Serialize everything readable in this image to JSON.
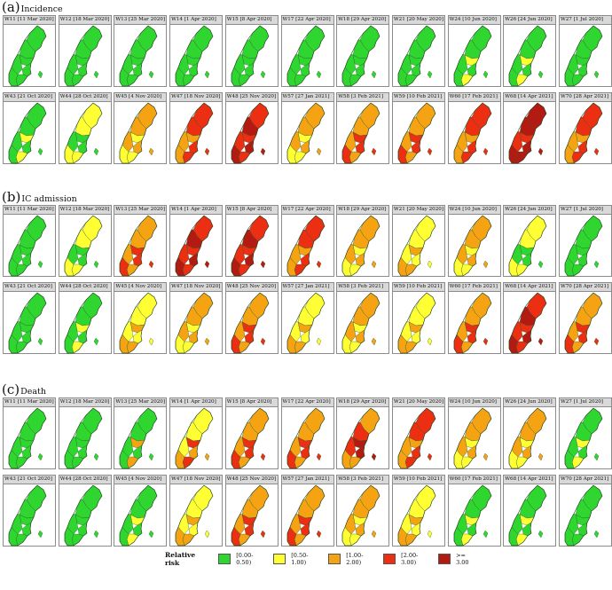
{
  "sections": [
    {
      "letter": "(a)",
      "title": "Incidence",
      "rows": [
        [
          [
            "W11 [11 Mar 2020]",
            "G"
          ],
          [
            "W12 [18 Mar 2020]",
            "G"
          ],
          [
            "W13 [25 Mar 2020]",
            "G"
          ],
          [
            "W14 [1 Apr 2020]",
            "G"
          ],
          [
            "W15 [8 Apr 2020]",
            "G"
          ],
          [
            "W17 [22 Apr 2020]",
            "G"
          ],
          [
            "W18 [29 Apr 2020]",
            "G"
          ],
          [
            "W21 [20 May 2020]",
            "G"
          ],
          [
            "W24 [10 Jun 2020]",
            "GY"
          ],
          [
            "W26 [24 Jun 2020]",
            "GY"
          ],
          [
            "W27 [1 Jul 2020]",
            "G"
          ]
        ],
        [
          [
            "W43 [21 Oct 2020]",
            "GY"
          ],
          [
            "W44 [28 Oct 2020]",
            "YG"
          ],
          [
            "W45 [4 Nov 2020]",
            "OY"
          ],
          [
            "W47 [18 Nov 2020]",
            "RO"
          ],
          [
            "W48 [25 Nov 2020]",
            "RD"
          ],
          [
            "W57 [27 Jan 2021]",
            "OY"
          ],
          [
            "W58 [3 Feb 2021]",
            "OR"
          ],
          [
            "W59 [10 Feb 2021]",
            "OR"
          ],
          [
            "W60 [17 Feb 2021]",
            "RO"
          ],
          [
            "W68 [14 Apr 2021]",
            "DR"
          ],
          [
            "W70 [28 Apr 2021]",
            "RO"
          ]
        ]
      ]
    },
    {
      "letter": "(b)",
      "title": "IC admission",
      "rows": [
        [
          [
            "W11 [11 Mar 2020]",
            "G"
          ],
          [
            "W12 [18 Mar 2020]",
            "YG"
          ],
          [
            "W13 [25 Mar 2020]",
            "OR"
          ],
          [
            "W14 [1 Apr 2020]",
            "RD"
          ],
          [
            "W15 [8 Apr 2020]",
            "RD"
          ],
          [
            "W17 [22 Apr 2020]",
            "RO"
          ],
          [
            "W18 [29 Apr 2020]",
            "OY"
          ],
          [
            "W21 [20 May 2020]",
            "YO"
          ],
          [
            "W24 [10 Jun 2020]",
            "OY"
          ],
          [
            "W26 [24 Jun 2020]",
            "YG"
          ],
          [
            "W27 [1 Jul 2020]",
            "G"
          ]
        ],
        [
          [
            "W43 [21 Oct 2020]",
            "G"
          ],
          [
            "W44 [28 Oct 2020]",
            "GY"
          ],
          [
            "W45 [4 Nov 2020]",
            "YO"
          ],
          [
            "W47 [18 Nov 2020]",
            "OY"
          ],
          [
            "W48 [25 Nov 2020]",
            "OR"
          ],
          [
            "W57 [27 Jan 2021]",
            "YO"
          ],
          [
            "W58 [3 Feb 2021]",
            "OY"
          ],
          [
            "W59 [10 Feb 2021]",
            "YO"
          ],
          [
            "W60 [17 Feb 2021]",
            "OR"
          ],
          [
            "W68 [14 Apr 2021]",
            "RD"
          ],
          [
            "W70 [28 Apr 2021]",
            "OR"
          ]
        ]
      ]
    },
    {
      "letter": "(c)",
      "title": "Death",
      "rows": [
        [
          [
            "W11 [11 Mar 2020]",
            "G"
          ],
          [
            "W12 [18 Mar 2020]",
            "G"
          ],
          [
            "W13 [25 Mar 2020]",
            "GO"
          ],
          [
            "W14 [1 Apr 2020]",
            "YR"
          ],
          [
            "W15 [8 Apr 2020]",
            "OR"
          ],
          [
            "W17 [22 Apr 2020]",
            "OR"
          ],
          [
            "W18 [29 Apr 2020]",
            "OD"
          ],
          [
            "W21 [20 May 2020]",
            "RO"
          ],
          [
            "W24 [10 Jun 2020]",
            "OY"
          ],
          [
            "W26 [24 Jun 2020]",
            "OY"
          ],
          [
            "W27 [1 Jul 2020]",
            "GY"
          ]
        ],
        [
          [
            "W43 [21 Oct 2020]",
            "G"
          ],
          [
            "W44 [28 Oct 2020]",
            "G"
          ],
          [
            "W45 [4 Nov 2020]",
            "GY"
          ],
          [
            "W47 [18 Nov 2020]",
            "YO"
          ],
          [
            "W48 [25 Nov 2020]",
            "OR"
          ],
          [
            "W57 [27 Jan 2021]",
            "OR"
          ],
          [
            "W58 [3 Feb 2021]",
            "OY"
          ],
          [
            "W59 [10 Feb 2021]",
            "YO"
          ],
          [
            "W60 [17 Feb 2021]",
            "GY"
          ],
          [
            "W68 [14 Apr 2021]",
            "GY"
          ],
          [
            "W70 [28 Apr 2021]",
            "G"
          ]
        ]
      ]
    }
  ],
  "legend": {
    "title": "Relative risk",
    "items": [
      {
        "label": "[0.00-0.50)",
        "color": "#2fd62f"
      },
      {
        "label": "[0.50-1.00)",
        "color": "#ffff33"
      },
      {
        "label": "[1.00-2.00)",
        "color": "#f5a313"
      },
      {
        "label": "[2.00-3.00)",
        "color": "#ec2e12"
      },
      {
        "label": ">= 3.00",
        "color": "#b31b12"
      }
    ]
  },
  "colors": {
    "G": "#2fd62f",
    "Y": "#ffff33",
    "O": "#f5a313",
    "R": "#ec2e12",
    "D": "#b31b12"
  }
}
